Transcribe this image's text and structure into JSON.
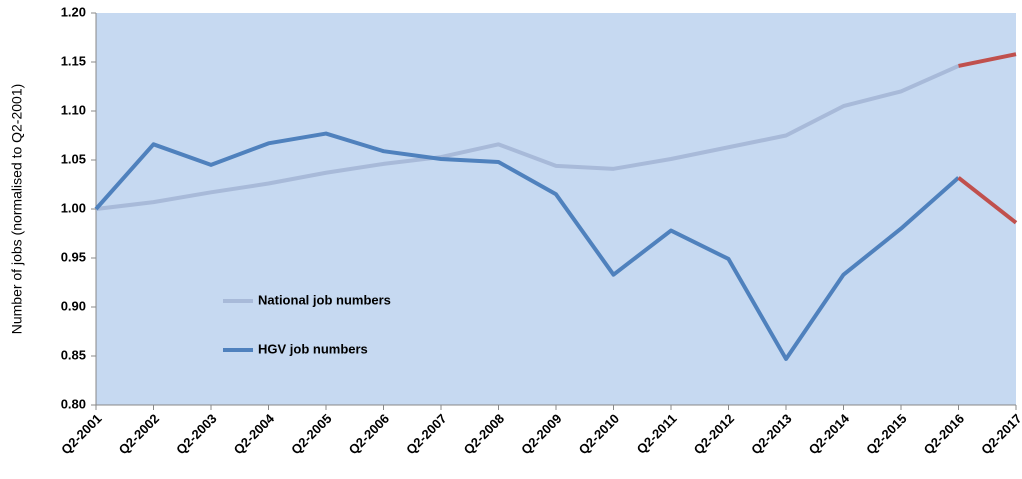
{
  "chart_data": {
    "type": "line",
    "y_axis_label": "Number of jobs (normalised to Q2-2001)",
    "categories": [
      "Q2-2001",
      "Q2-2002",
      "Q2-2003",
      "Q2-2004",
      "Q2-2005",
      "Q2-2006",
      "Q2-2007",
      "Q2-2008",
      "Q2-2009",
      "Q2-2010",
      "Q2-2011",
      "Q2-2012",
      "Q2-2013",
      "Q2-2014",
      "Q2-2015",
      "Q2-2016",
      "Q2-2017"
    ],
    "series": [
      {
        "name": "National job numbers",
        "color": "#a8bad9",
        "last_segment_color": "#c0504d",
        "values": [
          1.0,
          1.007,
          1.017,
          1.026,
          1.037,
          1.046,
          1.053,
          1.066,
          1.044,
          1.041,
          1.051,
          1.063,
          1.075,
          1.105,
          1.12,
          1.146,
          1.158
        ]
      },
      {
        "name": "HGV job numbers",
        "color": "#4f81bd",
        "last_segment_color": "#c0504d",
        "values": [
          1.0,
          1.066,
          1.045,
          1.067,
          1.077,
          1.059,
          1.051,
          1.048,
          1.015,
          0.933,
          0.978,
          0.949,
          0.847,
          0.933,
          0.98,
          1.032,
          0.986
        ]
      }
    ],
    "ylim": [
      0.8,
      1.2
    ],
    "yticks": [
      {
        "value": 0.8,
        "label": "0.80"
      },
      0.85,
      {
        "value": 0.9,
        "label": "0.90"
      },
      0.95,
      {
        "value": 1.0,
        "label": "1.00"
      },
      1.05,
      {
        "value": 1.1,
        "label": "1.10"
      },
      1.15,
      {
        "value": 1.2,
        "label": "1.20"
      }
    ],
    "grid": false,
    "legend": "left",
    "plot_background": "#c6d9f1"
  }
}
